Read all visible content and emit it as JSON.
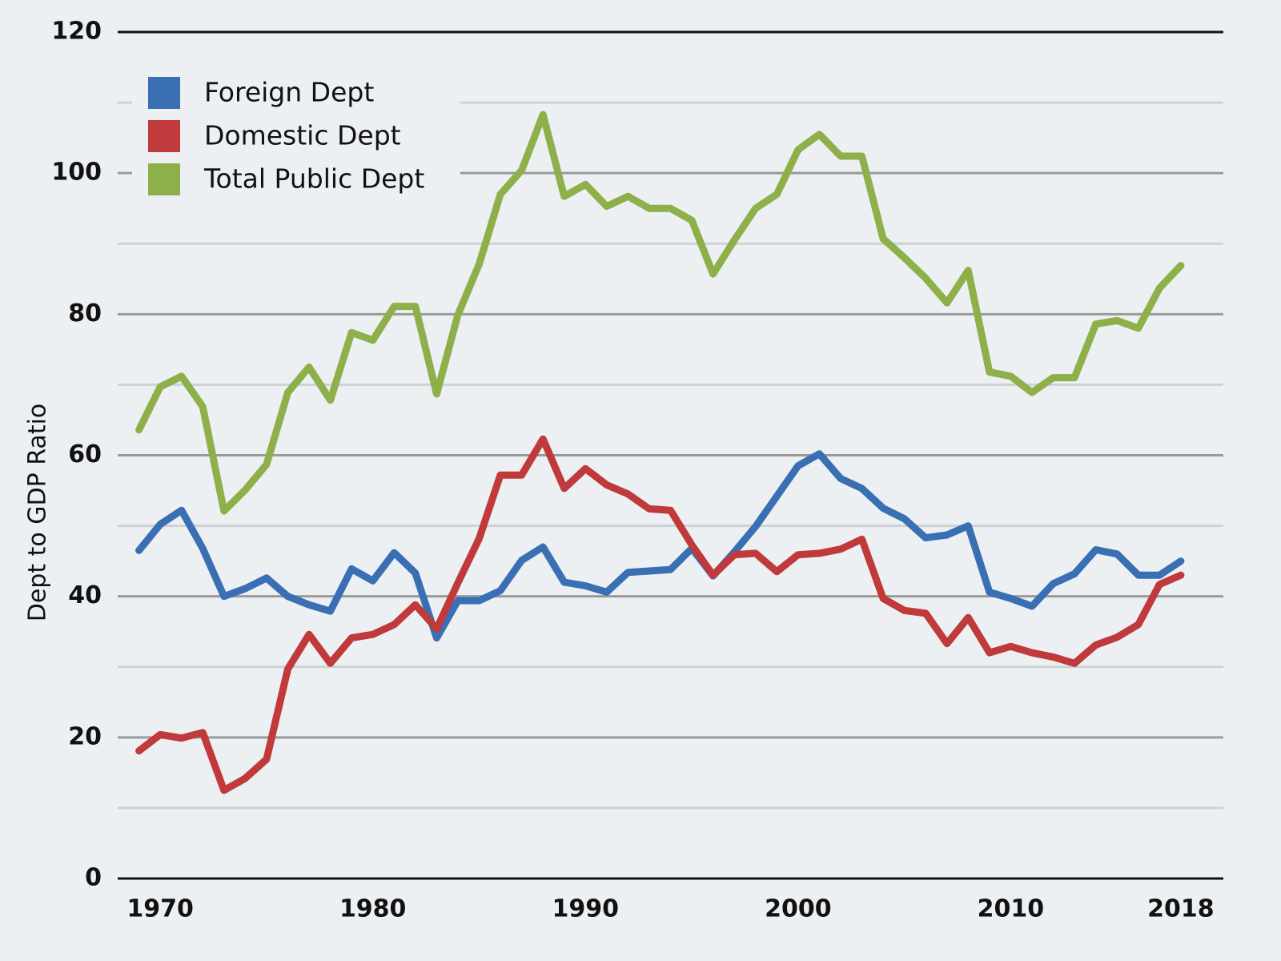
{
  "chart_data": {
    "type": "line",
    "y_label": "Dept to GDP Ratio",
    "x": [
      1969,
      1970,
      1971,
      1972,
      1973,
      1974,
      1975,
      1976,
      1977,
      1978,
      1979,
      1980,
      1981,
      1982,
      1983,
      1984,
      1985,
      1986,
      1987,
      1988,
      1989,
      1990,
      1991,
      1992,
      1993,
      1994,
      1995,
      1996,
      1997,
      1998,
      1999,
      2000,
      2001,
      2002,
      2003,
      2004,
      2005,
      2006,
      2007,
      2008,
      2009,
      2010,
      2011,
      2012,
      2013,
      2014,
      2015,
      2016,
      2017,
      2018
    ],
    "xlim": [
      1968,
      2020
    ],
    "xticks": [
      1970,
      1980,
      1990,
      2000,
      2010,
      2018
    ],
    "ylim": [
      0,
      120
    ],
    "yticks": [
      0,
      20,
      40,
      60,
      80,
      100,
      120
    ],
    "grid": true,
    "legend": "top-left",
    "series": [
      {
        "name": "Foreign Dept",
        "color": "#3a6fb4",
        "values": [
          46.5,
          50.2,
          52.2,
          46.8,
          40,
          41.1,
          42.6,
          40,
          38.8,
          37.9,
          43.9,
          42.2,
          46.2,
          43.3,
          34.1,
          39.4,
          39.4,
          40.8,
          45.1,
          47,
          42,
          41.5,
          40.6,
          43.4,
          43.6,
          43.8,
          46.8,
          42.9,
          46.3,
          49.9,
          54.2,
          58.5,
          60.2,
          56.7,
          55.3,
          52.5,
          51,
          48.3,
          48.7,
          50,
          40.6,
          39.7,
          38.6,
          41.8,
          43.2,
          46.6,
          46,
          43,
          43,
          45
        ]
      },
      {
        "name": "Domestic Dept",
        "color": "#c0393b",
        "values": [
          18.1,
          20.4,
          19.9,
          20.7,
          12.5,
          14.2,
          16.9,
          29.7,
          34.6,
          30.5,
          34.1,
          34.6,
          36,
          38.8,
          35.4,
          41.9,
          48.2,
          57.2,
          57.2,
          62.3,
          55.3,
          58.1,
          55.8,
          54.5,
          52.4,
          52.2,
          47.3,
          43,
          45.9,
          46.1,
          43.5,
          45.9,
          46.1,
          46.7,
          48.1,
          39.7,
          38,
          37.6,
          33.3,
          37,
          32,
          32.9,
          32,
          31.4,
          30.5,
          33.1,
          34.2,
          36,
          41.7,
          43
        ]
      },
      {
        "name": "Total Public Dept",
        "color": "#8db04a",
        "values": [
          63.6,
          69.7,
          71.2,
          66.9,
          52.1,
          55.1,
          58.7,
          68.9,
          72.5,
          67.8,
          77.4,
          76.3,
          81.1,
          81.1,
          68.7,
          79.9,
          87.1,
          97,
          100.4,
          108.3,
          96.7,
          98.4,
          95.3,
          96.7,
          95,
          95,
          93.3,
          85.7,
          90.5,
          95,
          97,
          103.3,
          105.5,
          102.4,
          102.4,
          90.7,
          88,
          85.1,
          81.6,
          86.2,
          71.8,
          71.2,
          68.9,
          71,
          71,
          78.6,
          79.1,
          78,
          83.7,
          86.9
        ]
      }
    ]
  }
}
